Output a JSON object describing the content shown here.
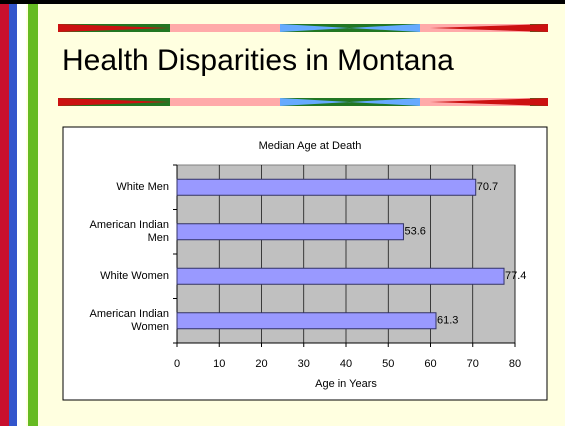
{
  "slide_title": "Health Disparities in Montana",
  "chart_data": {
    "type": "hbar",
    "title": "Median Age at Death",
    "categories": [
      "White Men",
      "American Indian Men",
      "White Women",
      "American Indian Women"
    ],
    "values": [
      70.7,
      53.6,
      77.4,
      61.3
    ],
    "color": "#9999ff",
    "xlabel": "Age in Years",
    "xlim": [
      0,
      80
    ],
    "xticks": [
      0,
      10,
      20,
      30,
      40,
      50,
      60,
      70,
      80
    ],
    "grid": true
  }
}
